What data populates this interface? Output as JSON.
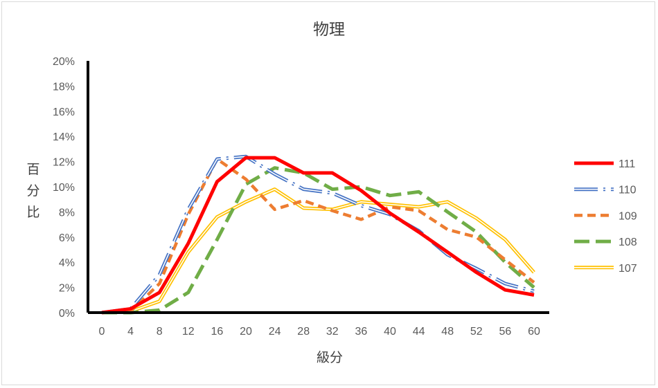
{
  "chart_data": {
    "type": "line",
    "title": "物理",
    "xlabel": "級分",
    "ylabel": "百分比",
    "x": [
      0,
      4,
      8,
      12,
      16,
      20,
      24,
      28,
      32,
      36,
      40,
      44,
      48,
      52,
      56,
      60
    ],
    "ylim": [
      0,
      20
    ],
    "yticks": [
      "0%",
      "2%",
      "4%",
      "6%",
      "8%",
      "10%",
      "12%",
      "14%",
      "16%",
      "18%",
      "20%"
    ],
    "grid": false,
    "legend_position": "right",
    "series": [
      {
        "name": "111",
        "color": "#ff0000",
        "style": "solid-thick",
        "values": [
          0.0,
          0.3,
          1.6,
          5.5,
          10.4,
          12.3,
          12.3,
          11.1,
          11.1,
          9.7,
          7.9,
          6.4,
          4.8,
          3.2,
          1.8,
          1.4
        ]
      },
      {
        "name": "110",
        "color": "#4472c4",
        "style": "dash-dot-double",
        "values": [
          0.0,
          0.3,
          3.0,
          8.2,
          12.2,
          12.4,
          11.0,
          9.8,
          9.5,
          8.5,
          7.8,
          6.5,
          4.6,
          3.5,
          2.3,
          1.7
        ]
      },
      {
        "name": "109",
        "color": "#ed7d31",
        "style": "dashed",
        "values": [
          0.0,
          0.1,
          2.3,
          7.8,
          12.2,
          10.6,
          8.2,
          8.9,
          8.1,
          7.4,
          8.4,
          8.1,
          6.6,
          6.0,
          4.2,
          2.4
        ]
      },
      {
        "name": "108",
        "color": "#70ad47",
        "style": "long-dash",
        "values": [
          0.0,
          0.0,
          0.2,
          1.6,
          5.8,
          10.2,
          11.5,
          11.1,
          9.8,
          10.0,
          9.3,
          9.6,
          8.0,
          6.4,
          4.0,
          2.0
        ]
      },
      {
        "name": "107",
        "color": "#ffc000",
        "style": "double",
        "values": [
          0.0,
          0.1,
          0.9,
          4.8,
          7.6,
          8.8,
          9.8,
          8.3,
          8.2,
          8.8,
          8.6,
          8.4,
          8.8,
          7.5,
          5.8,
          3.2
        ]
      }
    ]
  }
}
